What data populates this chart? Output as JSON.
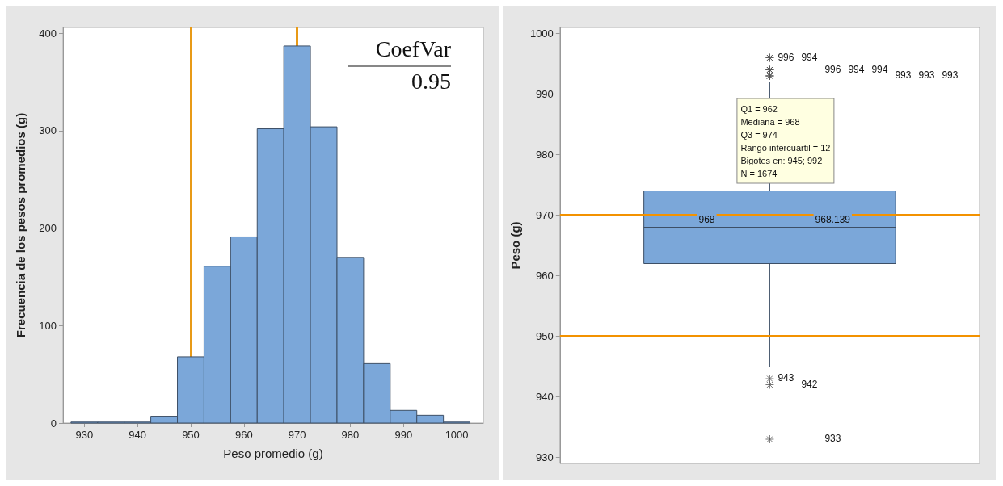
{
  "chart_data": [
    {
      "type": "histogram",
      "xlabel": "Peso promedio (g)",
      "ylabel": "Frecuencia de los pesos promedios (g)",
      "bins": [
        927.5,
        932.5,
        937.5,
        942.5,
        947.5,
        952.5,
        957.5,
        962.5,
        967.5,
        972.5,
        977.5,
        982.5,
        987.5,
        992.5,
        997.5,
        1002.5
      ],
      "values": [
        1,
        1,
        1,
        7,
        68,
        161,
        191,
        302,
        387,
        304,
        170,
        61,
        13,
        8,
        1
      ],
      "color": "#7ba7d9",
      "xlim": [
        926,
        1005
      ],
      "xticks": [
        930,
        940,
        950,
        960,
        970,
        980,
        990,
        1000
      ],
      "ylim": [
        0,
        406
      ],
      "yticks": [
        0,
        100,
        200,
        300,
        400
      ],
      "grid": false,
      "ref_lines": [
        {
          "axis": "x",
          "value": 950,
          "color": "#e89a17"
        },
        {
          "axis": "x",
          "value": 970,
          "color": "#e89a17"
        }
      ],
      "annotations": [
        "CoefVar",
        "0.95"
      ]
    },
    {
      "type": "box",
      "ylabel": "Peso (g)",
      "categories": [
        null
      ],
      "color": "#7ba7d9",
      "boxes": [
        {
          "low": 945,
          "q1": 962,
          "median": 968,
          "q3": 974,
          "high": 992,
          "outliers": [
            996,
            996,
            994,
            994,
            994,
            993,
            993,
            993,
            943,
            942,
            933
          ]
        }
      ],
      "marker": "cross",
      "ylim": [
        929,
        1001
      ],
      "yticks": [
        930,
        940,
        950,
        960,
        970,
        980,
        990,
        1000
      ],
      "grid": false,
      "ref_lines": [
        {
          "axis": "y",
          "value": 970,
          "color": "#f39200"
        },
        {
          "axis": "y",
          "value": 950,
          "color": "#f39200"
        }
      ],
      "annotations": [
        "996",
        "994",
        "996",
        "994",
        "994",
        "993",
        "993",
        "993",
        "943",
        "942",
        "933",
        "968",
        "968.139",
        "Q1 = 962\nMediana = 968\nQ3 = 974\nRango intercuartil = 12\nBigotes en: 945; 992\nN = 1674"
      ]
    }
  ]
}
